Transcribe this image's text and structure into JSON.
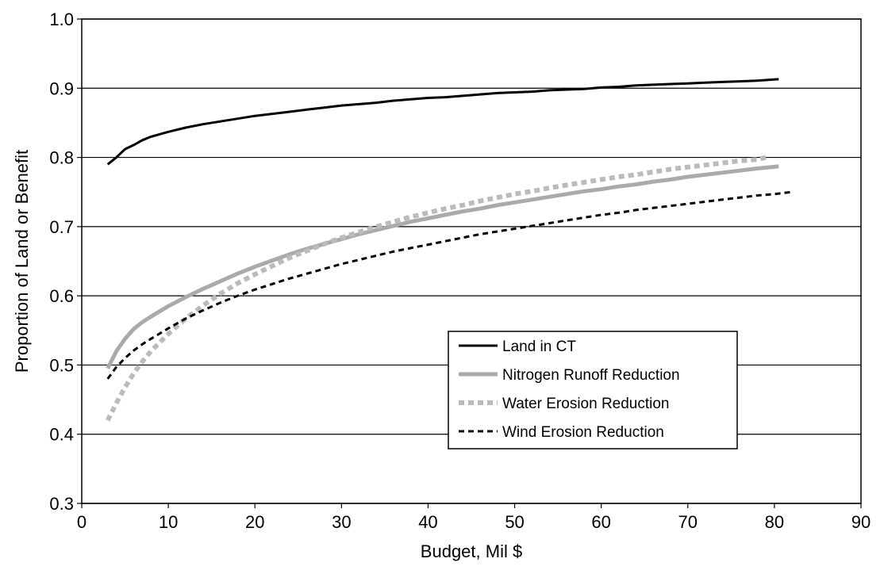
{
  "chart_data": {
    "type": "line",
    "title": "",
    "xlabel": "Budget, Mil $",
    "ylabel": "Proportion of Land or Benefit",
    "xlim": [
      0,
      90
    ],
    "ylim": [
      0.3,
      1.0
    ],
    "xticks": [
      0,
      10,
      20,
      30,
      40,
      50,
      60,
      70,
      80,
      90
    ],
    "yticks": [
      0.3,
      0.4,
      0.5,
      0.6,
      0.7,
      0.8,
      0.9,
      1.0
    ],
    "xtick_labels": [
      "0",
      "10",
      "20",
      "30",
      "40",
      "50",
      "60",
      "70",
      "80",
      "90"
    ],
    "ytick_labels": [
      "0.3",
      "0.4",
      "0.5",
      "0.6",
      "0.7",
      "0.8",
      "0.9",
      "1.0"
    ],
    "grid": "horizontal",
    "legend_position": "lower-right",
    "series": [
      {
        "name": "Land in CT",
        "color": "#000000",
        "style": "solid",
        "x": [
          3,
          4,
          5,
          6,
          7,
          8,
          10,
          12,
          14,
          16,
          18,
          20,
          22,
          24,
          26,
          28,
          30,
          32,
          34,
          36,
          38,
          40,
          42,
          44,
          46,
          48,
          50,
          52,
          54,
          56,
          58,
          60,
          62,
          64,
          66,
          68,
          70,
          72,
          74,
          76,
          78,
          80.5
        ],
        "values": [
          0.79,
          0.8,
          0.812,
          0.818,
          0.825,
          0.83,
          0.837,
          0.843,
          0.848,
          0.852,
          0.856,
          0.86,
          0.863,
          0.866,
          0.869,
          0.872,
          0.875,
          0.877,
          0.879,
          0.882,
          0.884,
          0.886,
          0.887,
          0.889,
          0.891,
          0.893,
          0.894,
          0.895,
          0.897,
          0.898,
          0.899,
          0.901,
          0.902,
          0.904,
          0.905,
          0.906,
          0.907,
          0.908,
          0.909,
          0.91,
          0.911,
          0.913
        ]
      },
      {
        "name": "Nitrogen Runoff Reduction",
        "color": "#aaaaaa",
        "style": "solid-thick",
        "x": [
          3,
          4,
          5,
          6,
          7,
          8,
          10,
          12,
          14,
          16,
          18,
          20,
          22,
          24,
          26,
          28,
          30,
          32,
          34,
          36,
          38,
          40,
          42,
          44,
          46,
          48,
          50,
          52,
          54,
          56,
          58,
          60,
          62,
          64,
          66,
          68,
          70,
          72,
          74,
          76,
          78,
          80.5
        ],
        "values": [
          0.495,
          0.52,
          0.538,
          0.552,
          0.562,
          0.57,
          0.585,
          0.598,
          0.61,
          0.621,
          0.632,
          0.642,
          0.651,
          0.66,
          0.668,
          0.675,
          0.682,
          0.689,
          0.695,
          0.701,
          0.707,
          0.712,
          0.717,
          0.722,
          0.726,
          0.731,
          0.735,
          0.739,
          0.743,
          0.747,
          0.751,
          0.754,
          0.758,
          0.761,
          0.765,
          0.768,
          0.772,
          0.775,
          0.778,
          0.781,
          0.784,
          0.787
        ]
      },
      {
        "name": "Water Erosion Reduction",
        "color": "#bbbbbb",
        "style": "dotted-thick",
        "x": [
          3,
          4,
          5,
          6,
          7,
          8,
          10,
          12,
          14,
          16,
          18,
          20,
          22,
          24,
          26,
          28,
          30,
          32,
          34,
          36,
          38,
          40,
          42,
          44,
          46,
          48,
          50,
          52,
          54,
          56,
          58,
          60,
          62,
          64,
          66,
          68,
          70,
          72,
          74,
          76,
          78,
          79
        ],
        "values": [
          0.42,
          0.445,
          0.468,
          0.488,
          0.505,
          0.52,
          0.545,
          0.567,
          0.586,
          0.603,
          0.618,
          0.631,
          0.643,
          0.655,
          0.665,
          0.675,
          0.684,
          0.692,
          0.7,
          0.707,
          0.714,
          0.72,
          0.726,
          0.731,
          0.737,
          0.742,
          0.747,
          0.751,
          0.756,
          0.76,
          0.764,
          0.768,
          0.772,
          0.775,
          0.779,
          0.783,
          0.786,
          0.789,
          0.792,
          0.795,
          0.797,
          0.8
        ]
      },
      {
        "name": "Wind Erosion Reduction",
        "color": "#000000",
        "style": "dashed-fine",
        "x": [
          3,
          4,
          5,
          6,
          7,
          8,
          10,
          12,
          14,
          16,
          18,
          20,
          22,
          24,
          26,
          28,
          30,
          32,
          34,
          36,
          38,
          40,
          42,
          44,
          46,
          48,
          50,
          52,
          54,
          56,
          58,
          60,
          62,
          64,
          66,
          68,
          70,
          72,
          74,
          76,
          78,
          80,
          82
        ],
        "values": [
          0.48,
          0.497,
          0.51,
          0.521,
          0.53,
          0.538,
          0.553,
          0.567,
          0.579,
          0.59,
          0.6,
          0.609,
          0.617,
          0.625,
          0.632,
          0.639,
          0.646,
          0.652,
          0.658,
          0.664,
          0.669,
          0.674,
          0.679,
          0.684,
          0.689,
          0.693,
          0.697,
          0.701,
          0.705,
          0.709,
          0.713,
          0.717,
          0.72,
          0.724,
          0.727,
          0.73,
          0.733,
          0.736,
          0.739,
          0.742,
          0.745,
          0.747,
          0.75
        ]
      }
    ]
  }
}
